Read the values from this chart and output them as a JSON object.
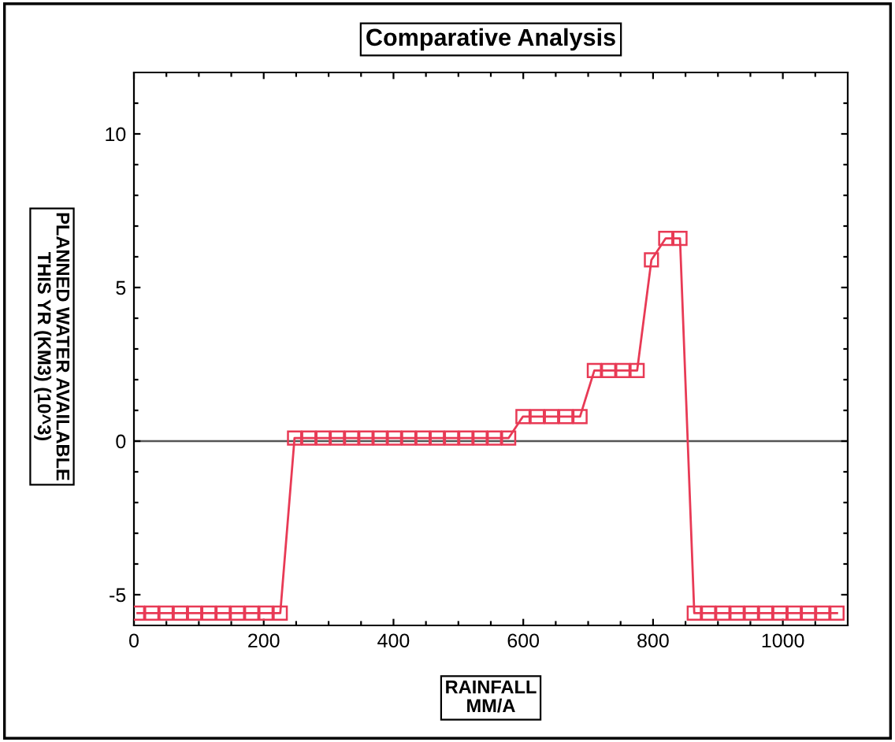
{
  "chart_data": {
    "type": "line",
    "title": "Comparative Analysis",
    "xlabel": "RAINFALL\nMM/A",
    "ylabel": "PLANNED WATER AVAILABLE\nTHIS YR (KM3) (10^3)",
    "x": [
      5.5,
      27.5,
      49.5,
      71.5,
      93.5,
      115.5,
      137.5,
      159.5,
      181.5,
      203.5,
      225.5,
      247.5,
      269.5,
      291.5,
      313.5,
      335.5,
      357.5,
      379.5,
      401.5,
      423.5,
      445.5,
      467.5,
      489.5,
      511.5,
      533.5,
      555.5,
      577.5,
      599.5,
      621.5,
      643.5,
      665.5,
      687.5,
      709.5,
      731.5,
      753.5,
      775.5,
      797.5,
      819.5,
      841.5,
      863.5,
      885.5,
      907.5,
      929.5,
      951.5,
      973.5,
      995.5,
      1017.5,
      1039.5,
      1061.5,
      1083.5
    ],
    "series": [
      {
        "color": "#e83a55",
        "values": [
          -5.6,
          -5.6,
          -5.6,
          -5.6,
          -5.6,
          -5.6,
          -5.6,
          -5.6,
          -5.6,
          -5.6,
          -5.6,
          0.1,
          0.1,
          0.1,
          0.1,
          0.1,
          0.1,
          0.1,
          0.1,
          0.1,
          0.1,
          0.1,
          0.1,
          0.1,
          0.1,
          0.1,
          0.1,
          0.8,
          0.8,
          0.8,
          0.8,
          0.8,
          2.3,
          2.3,
          2.3,
          2.3,
          5.9,
          6.6,
          6.6,
          -5.6,
          -5.6,
          -5.6,
          -5.6,
          -5.6,
          -5.6,
          -5.6,
          -5.6,
          -5.6,
          -5.6,
          -5.6
        ]
      }
    ],
    "xlim": [
      0,
      1100
    ],
    "ylim": [
      -6,
      12
    ],
    "xticks": [
      0,
      {
        "value": 50,
        "label": null
      },
      {
        "value": 100,
        "label": null
      },
      {
        "value": 150,
        "label": null
      },
      200,
      {
        "value": 250,
        "label": null
      },
      {
        "value": 300,
        "label": null
      },
      {
        "value": 350,
        "label": null
      },
      400,
      {
        "value": 450,
        "label": null
      },
      {
        "value": 500,
        "label": null
      },
      {
        "value": 550,
        "label": null
      },
      600,
      {
        "value": 650,
        "label": null
      },
      {
        "value": 700,
        "label": null
      },
      {
        "value": 750,
        "label": null
      },
      800,
      {
        "value": 850,
        "label": null
      },
      {
        "value": 900,
        "label": null
      },
      {
        "value": 950,
        "label": null
      },
      1000,
      {
        "value": 1050,
        "label": null
      }
    ],
    "yticks": [
      -5,
      {
        "value": -4,
        "label": null
      },
      {
        "value": -3,
        "label": null
      },
      {
        "value": -2,
        "label": null
      },
      {
        "value": -1,
        "label": null
      },
      0,
      {
        "value": 1,
        "label": null
      },
      {
        "value": 2,
        "label": null
      },
      {
        "value": 3,
        "label": null
      },
      {
        "value": 4,
        "label": null
      },
      5,
      {
        "value": 6,
        "label": null
      },
      {
        "value": 7,
        "label": null
      },
      {
        "value": 8,
        "label": null
      },
      {
        "value": 9,
        "label": null
      },
      10,
      {
        "value": 11,
        "label": null
      }
    ],
    "ref_lines": [
      {
        "axis": "y",
        "value": 0,
        "color": "#555555"
      }
    ],
    "marker": "square",
    "line_style": "solid",
    "grid": false,
    "legend": false
  }
}
